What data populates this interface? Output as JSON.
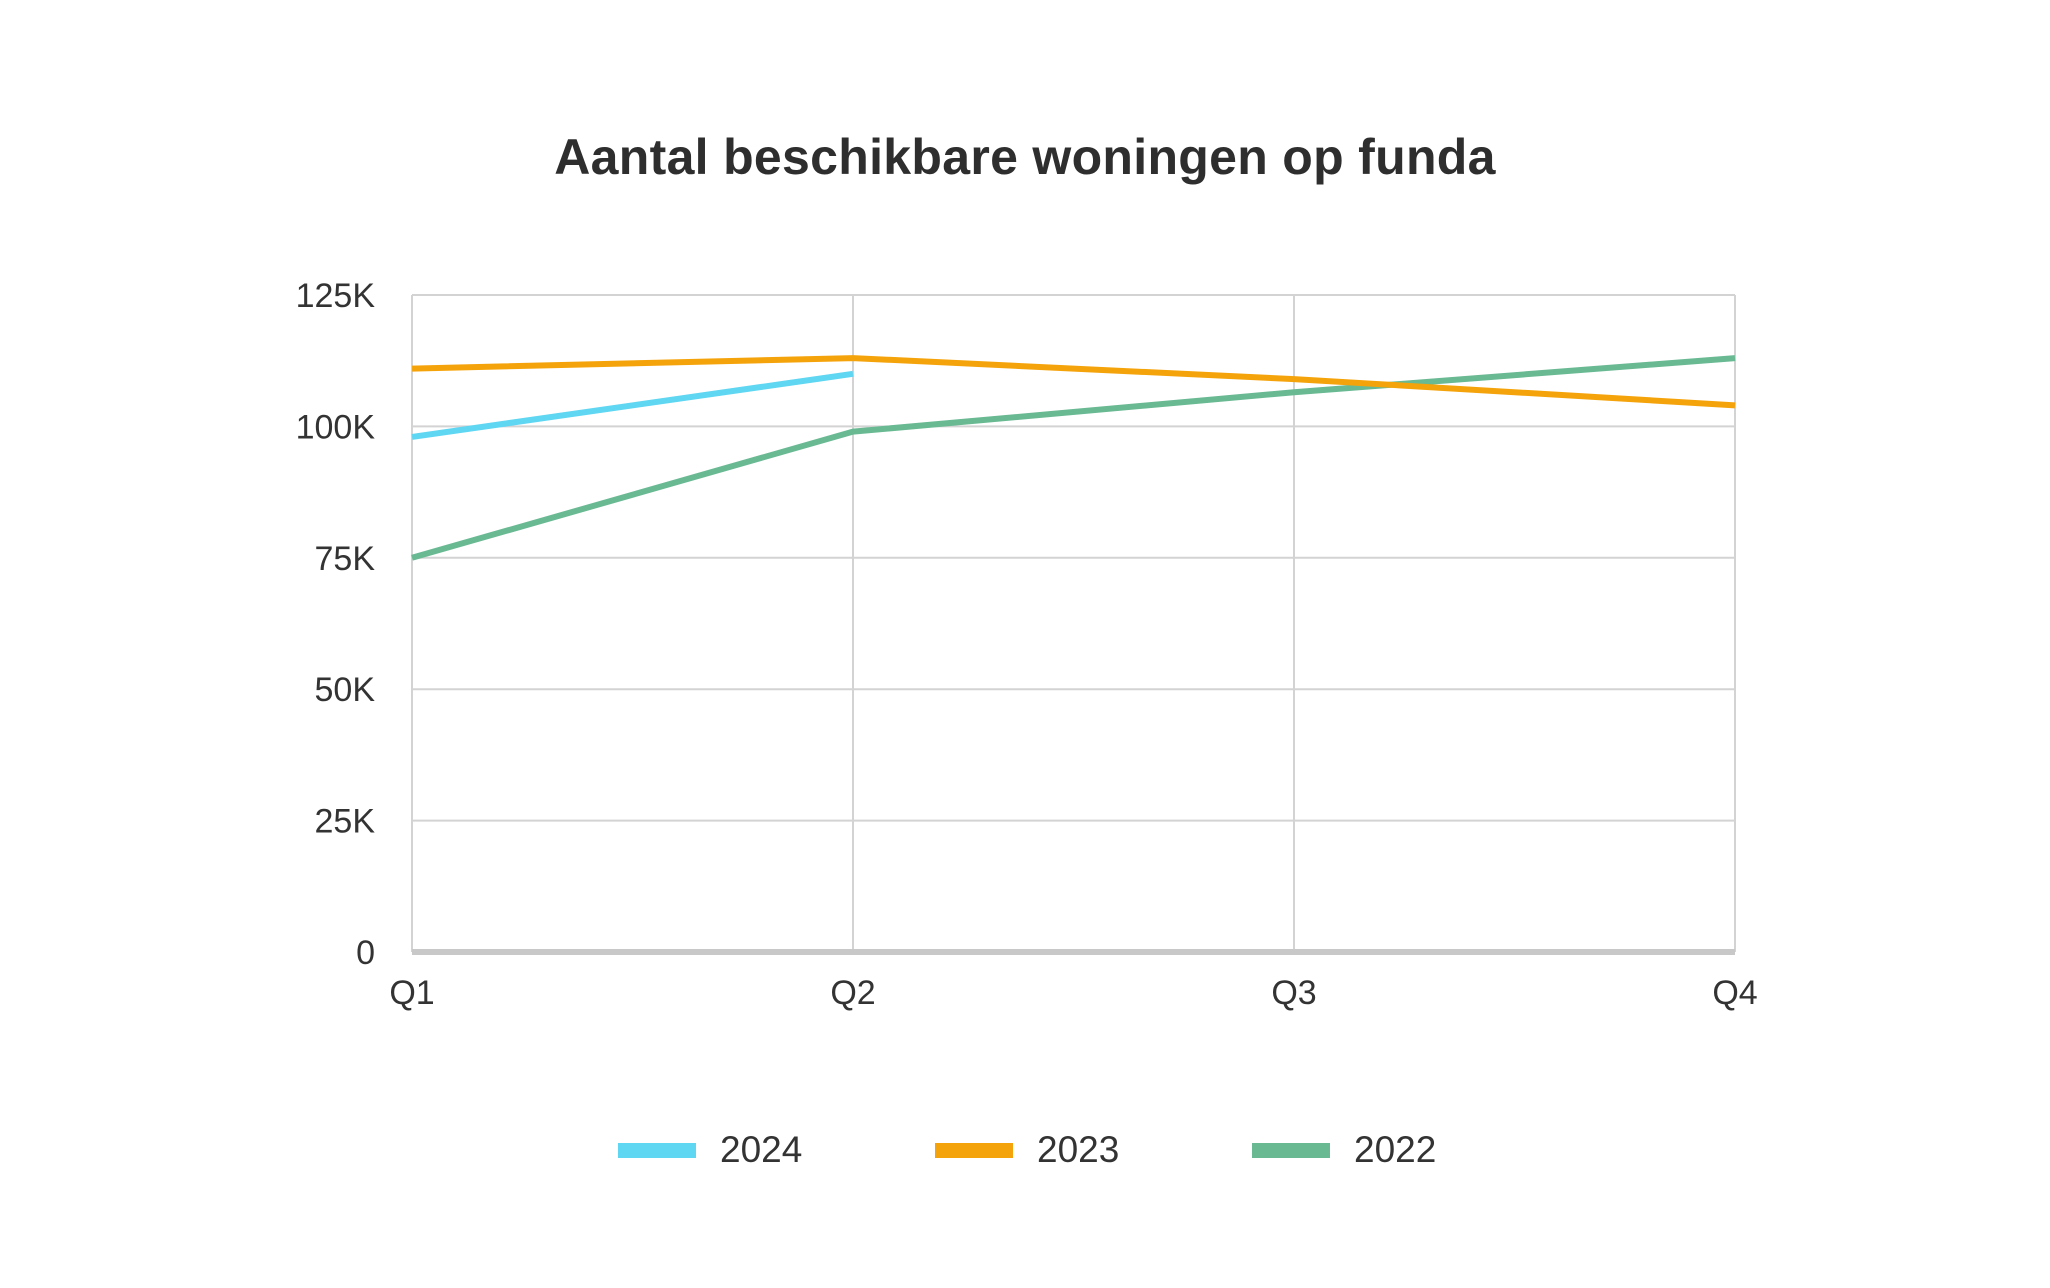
{
  "chart_data": {
    "type": "line",
    "title": "Aantal beschikbare woningen op funda",
    "xlabel": "",
    "ylabel": "",
    "categories": [
      "Q1",
      "Q2",
      "Q3",
      "Q4"
    ],
    "ylim": [
      0,
      125000
    ],
    "y_ticks": [
      {
        "value": 0,
        "label": "0"
      },
      {
        "value": 25000,
        "label": "25K"
      },
      {
        "value": 50000,
        "label": "50K"
      },
      {
        "value": 75000,
        "label": "75K"
      },
      {
        "value": 100000,
        "label": "100K"
      },
      {
        "value": 125000,
        "label": "125K"
      }
    ],
    "grid": true,
    "legend_position": "bottom",
    "series": [
      {
        "name": "2024",
        "color": "#5fd6f2",
        "values": [
          98000,
          110000,
          null,
          null
        ]
      },
      {
        "name": "2023",
        "color": "#f5a30a",
        "values": [
          111000,
          113000,
          109000,
          104000
        ]
      },
      {
        "name": "2022",
        "color": "#69b993",
        "values": [
          75000,
          99000,
          106500,
          113000
        ]
      }
    ]
  }
}
